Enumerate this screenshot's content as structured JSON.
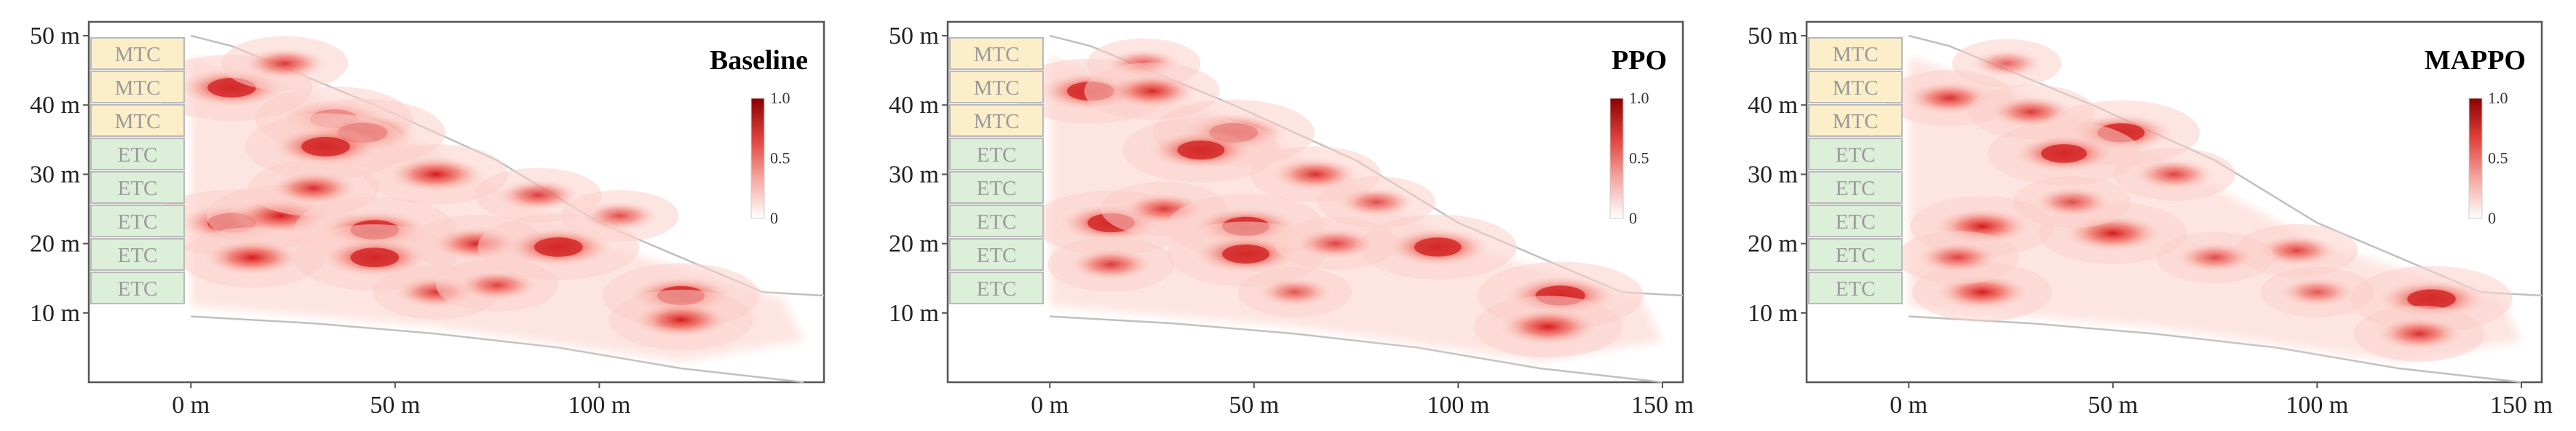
{
  "chart_data": [
    {
      "type": "heatmap",
      "title": "Baseline",
      "x_ticks": [
        "0 m",
        "50 m",
        "100 m"
      ],
      "y_ticks": [
        "10 m",
        "20 m",
        "30 m",
        "40 m",
        "50 m"
      ],
      "xlim": [
        -25,
        155
      ],
      "ylim": [
        0,
        52
      ],
      "colorbar": {
        "ticks": [
          "1.0",
          "0.5",
          "0"
        ],
        "range": [
          0,
          1
        ],
        "colors": [
          "#ffffff",
          "#f4a7a0",
          "#e0413b",
          "#8b0000"
        ]
      },
      "zone_labels": [
        "MTC",
        "MTC",
        "MTC",
        "ETC",
        "ETC",
        "ETC",
        "ETC",
        "ETC"
      ],
      "hotspots": [
        {
          "x": 10,
          "y": 42.5,
          "intensity": 0.9
        },
        {
          "x": 23,
          "y": 46,
          "intensity": 0.5
        },
        {
          "x": 35,
          "y": 38,
          "intensity": 0.85
        },
        {
          "x": 42,
          "y": 36,
          "intensity": 0.95
        },
        {
          "x": 33,
          "y": 34,
          "intensity": 0.9
        },
        {
          "x": 60,
          "y": 30,
          "intensity": 0.7
        },
        {
          "x": 10,
          "y": 23,
          "intensity": 0.9
        },
        {
          "x": 22,
          "y": 24,
          "intensity": 0.75
        },
        {
          "x": 45,
          "y": 22,
          "intensity": 0.9
        },
        {
          "x": 15,
          "y": 18,
          "intensity": 0.7
        },
        {
          "x": 45,
          "y": 18,
          "intensity": 0.9
        },
        {
          "x": 70,
          "y": 20,
          "intensity": 0.6
        },
        {
          "x": 90,
          "y": 19.5,
          "intensity": 0.9
        },
        {
          "x": 120,
          "y": 12.5,
          "intensity": 0.85
        },
        {
          "x": 120,
          "y": 9,
          "intensity": 0.7
        },
        {
          "x": 85,
          "y": 27,
          "intensity": 0.5
        },
        {
          "x": 105,
          "y": 24,
          "intensity": 0.4
        },
        {
          "x": 60,
          "y": 13,
          "intensity": 0.5
        },
        {
          "x": 30,
          "y": 28,
          "intensity": 0.55
        },
        {
          "x": 75,
          "y": 14,
          "intensity": 0.45
        }
      ]
    },
    {
      "type": "heatmap",
      "title": "PPO",
      "x_ticks": [
        "0 m",
        "50 m",
        "100 m",
        "150 m"
      ],
      "y_ticks": [
        "10 m",
        "20 m",
        "30 m",
        "40 m",
        "50 m"
      ],
      "xlim": [
        -25,
        155
      ],
      "ylim": [
        0,
        52
      ],
      "colorbar": {
        "ticks": [
          "1.0",
          "0.5",
          "0"
        ],
        "range": [
          0,
          1
        ],
        "colors": [
          "#ffffff",
          "#f4a7a0",
          "#e0413b",
          "#8b0000"
        ]
      },
      "zone_labels": [
        "MTC",
        "MTC",
        "MTC",
        "ETC",
        "ETC",
        "ETC",
        "ETC",
        "ETC"
      ],
      "hotspots": [
        {
          "x": 10,
          "y": 42,
          "intensity": 0.85
        },
        {
          "x": 23,
          "y": 46,
          "intensity": 0.35
        },
        {
          "x": 25,
          "y": 42,
          "intensity": 0.6
        },
        {
          "x": 45,
          "y": 36,
          "intensity": 0.9
        },
        {
          "x": 37,
          "y": 33.5,
          "intensity": 0.85
        },
        {
          "x": 65,
          "y": 30,
          "intensity": 0.55
        },
        {
          "x": 15,
          "y": 23,
          "intensity": 0.85
        },
        {
          "x": 28,
          "y": 25,
          "intensity": 0.5
        },
        {
          "x": 48,
          "y": 22.5,
          "intensity": 0.85
        },
        {
          "x": 48,
          "y": 18.5,
          "intensity": 0.85
        },
        {
          "x": 95,
          "y": 19.5,
          "intensity": 0.85
        },
        {
          "x": 125,
          "y": 12.5,
          "intensity": 0.95
        },
        {
          "x": 122,
          "y": 8,
          "intensity": 0.75
        },
        {
          "x": 70,
          "y": 20,
          "intensity": 0.45
        },
        {
          "x": 15,
          "y": 17,
          "intensity": 0.5
        },
        {
          "x": 80,
          "y": 26,
          "intensity": 0.4
        },
        {
          "x": 60,
          "y": 13,
          "intensity": 0.35
        }
      ]
    },
    {
      "type": "heatmap",
      "title": "MAPPO",
      "x_ticks": [
        "0 m",
        "50 m",
        "100 m",
        "150 m"
      ],
      "y_ticks": [
        "10 m",
        "20 m",
        "30 m",
        "40 m",
        "50 m"
      ],
      "xlim": [
        -25,
        155
      ],
      "ylim": [
        0,
        52
      ],
      "colorbar": {
        "ticks": [
          "1.0",
          "0.5",
          "0"
        ],
        "range": [
          0,
          1
        ],
        "colors": [
          "#ffffff",
          "#f4a7a0",
          "#e0413b",
          "#8b0000"
        ]
      },
      "zone_labels": [
        "MTC",
        "MTC",
        "MTC",
        "ETC",
        "ETC",
        "ETC",
        "ETC",
        "ETC"
      ],
      "hotspots": [
        {
          "x": 10,
          "y": 41,
          "intensity": 0.55
        },
        {
          "x": 24,
          "y": 46,
          "intensity": 0.3
        },
        {
          "x": 30,
          "y": 39,
          "intensity": 0.5
        },
        {
          "x": 52,
          "y": 36,
          "intensity": 0.85
        },
        {
          "x": 38,
          "y": 33,
          "intensity": 0.8
        },
        {
          "x": 65,
          "y": 30,
          "intensity": 0.45
        },
        {
          "x": 18,
          "y": 22.5,
          "intensity": 0.7
        },
        {
          "x": 50,
          "y": 21.5,
          "intensity": 0.75
        },
        {
          "x": 18,
          "y": 13,
          "intensity": 0.65
        },
        {
          "x": 95,
          "y": 19,
          "intensity": 0.45
        },
        {
          "x": 128,
          "y": 12,
          "intensity": 0.9
        },
        {
          "x": 125,
          "y": 7,
          "intensity": 0.55
        },
        {
          "x": 75,
          "y": 18,
          "intensity": 0.4
        },
        {
          "x": 40,
          "y": 26,
          "intensity": 0.4
        },
        {
          "x": 12,
          "y": 18,
          "intensity": 0.45
        },
        {
          "x": 100,
          "y": 13,
          "intensity": 0.35
        }
      ]
    }
  ]
}
